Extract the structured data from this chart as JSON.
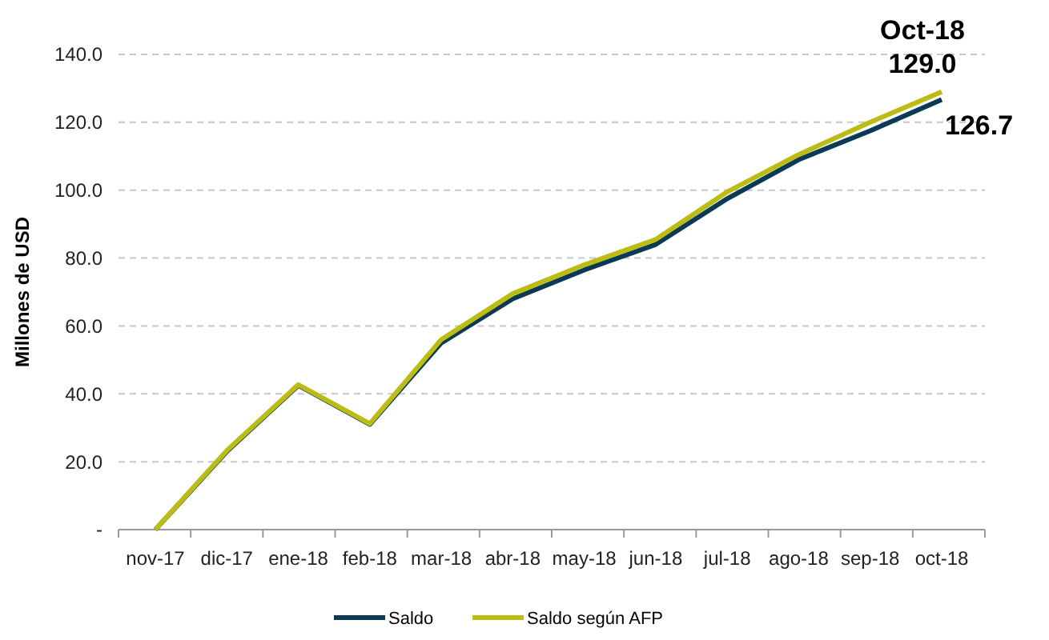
{
  "chart_data": {
    "type": "line",
    "ylabel": "Millones de USD",
    "categories": [
      "nov-17",
      "dic-17",
      "ene-18",
      "feb-18",
      "mar-18",
      "abr-18",
      "may-18",
      "jun-18",
      "jul-18",
      "ago-18",
      "sep-18",
      "oct-18"
    ],
    "series": [
      {
        "name": "Saldo",
        "color": "#0b3a56",
        "values": [
          0,
          23,
          42.5,
          31,
          55,
          68,
          76.5,
          84,
          97.5,
          109,
          117.5,
          126.7
        ]
      },
      {
        "name": "Saldo según AFP",
        "color": "#bcbd14",
        "values": [
          0,
          23.3,
          42.7,
          31.2,
          56,
          69.5,
          78,
          85.5,
          99.5,
          110.5,
          120,
          129.0
        ]
      }
    ],
    "ylim": [
      0,
      140
    ],
    "yticks": [
      {
        "value": 0,
        "label": "-"
      },
      {
        "value": 20,
        "label": "20.0"
      },
      {
        "value": 40,
        "label": "40.0"
      },
      {
        "value": 60,
        "label": "60.0"
      },
      {
        "value": 80,
        "label": "80.0"
      },
      {
        "value": 100,
        "label": "100.0"
      },
      {
        "value": 120,
        "label": "120.0"
      },
      {
        "value": 140,
        "label": "140.0"
      }
    ],
    "grid": "y",
    "legend": "bottom",
    "marker": "none",
    "line_style": "solid",
    "annotations": [
      {
        "text": "Oct-18\n129.0",
        "x": "oct-18",
        "y": 129.0
      },
      {
        "text": "126.7",
        "x": "oct-18",
        "y": 126.7
      }
    ]
  }
}
